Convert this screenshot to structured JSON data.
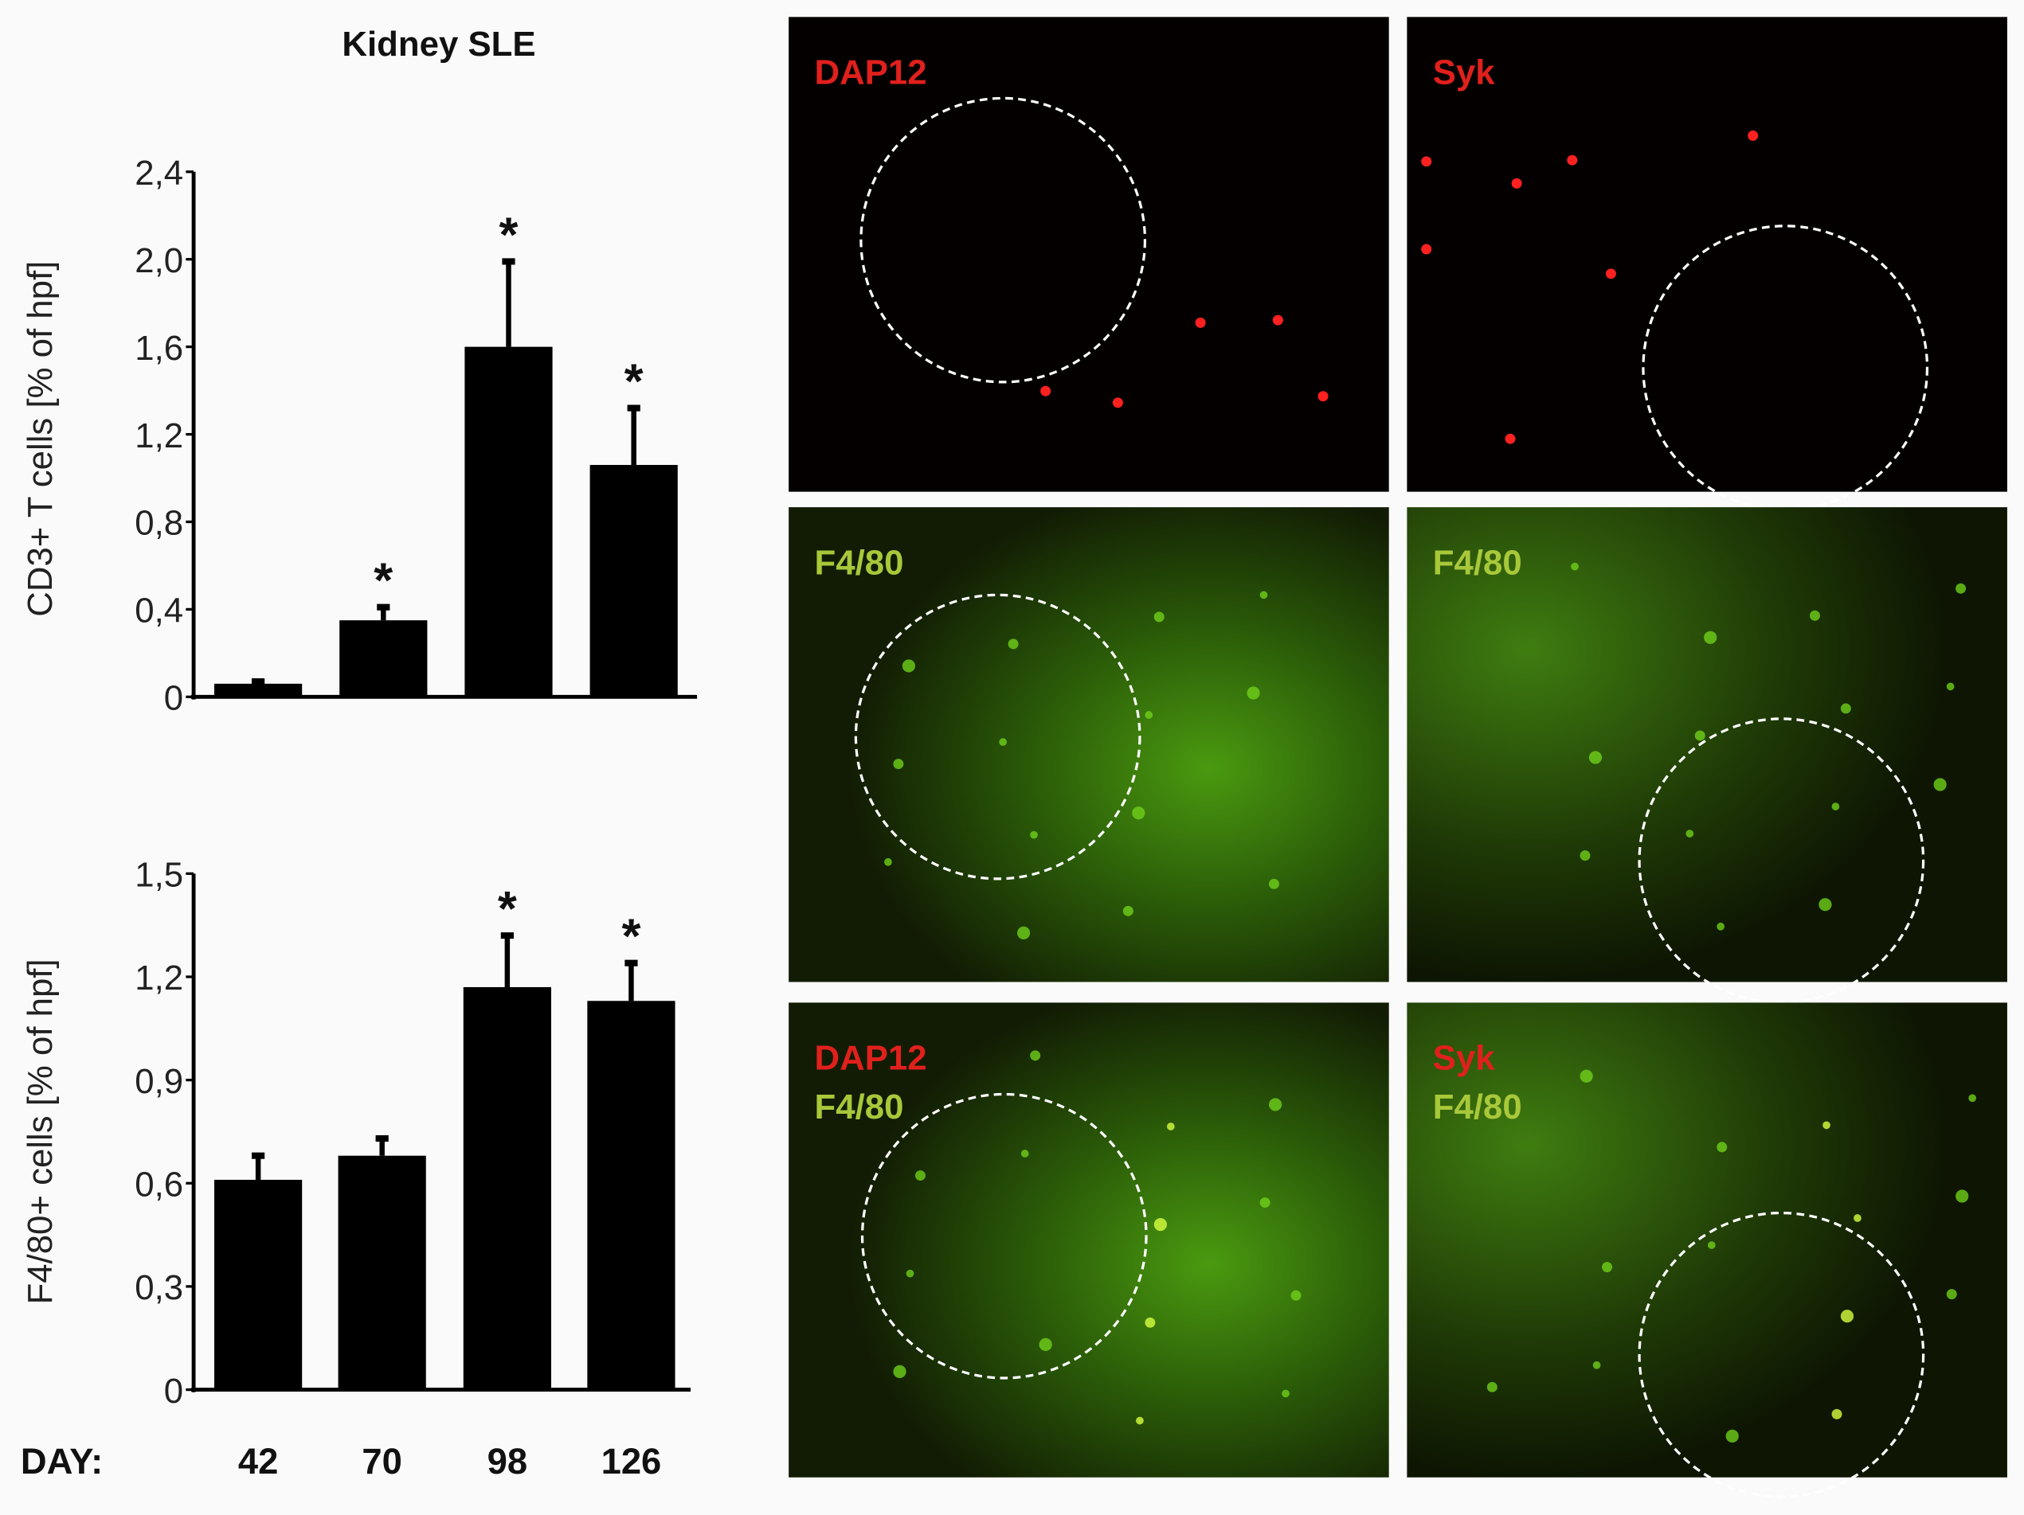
{
  "title": "Kidney SLE",
  "x_axis_label": "DAY:",
  "chart_data": [
    {
      "type": "bar",
      "title": "Kidney SLE",
      "categories": [
        "42",
        "70",
        "98",
        "126"
      ],
      "values": [
        0.06,
        0.35,
        1.6,
        1.06
      ],
      "errors": [
        0.01,
        0.06,
        0.39,
        0.26
      ],
      "significant": [
        false,
        true,
        true,
        true
      ],
      "ylabel": "CD3+ T cells [% of hpf]",
      "xlabel": "DAY:",
      "ylim": [
        0,
        2.4
      ],
      "yticks": [
        "0",
        "0,4",
        "0,8",
        "1,2",
        "1,6",
        "2,0",
        "2,4"
      ],
      "grid": false,
      "color": "#000000"
    },
    {
      "type": "bar",
      "categories": [
        "42",
        "70",
        "98",
        "126"
      ],
      "values": [
        0.61,
        0.68,
        1.17,
        1.13
      ],
      "errors": [
        0.07,
        0.05,
        0.15,
        0.11
      ],
      "significant": [
        false,
        false,
        true,
        true
      ],
      "ylabel": "F4/80+ cells [% of hpf]",
      "xlabel": "DAY:",
      "ylim": [
        0,
        1.5
      ],
      "yticks": [
        "0",
        "0,3",
        "0,6",
        "0,9",
        "1,2",
        "1,5"
      ],
      "grid": false,
      "color": "#000000"
    }
  ],
  "significance_marker": "*",
  "panels": [
    {
      "labels": [
        {
          "text": "DAP12",
          "color": "#e0201c"
        }
      ],
      "type": "red"
    },
    {
      "labels": [
        {
          "text": "Syk",
          "color": "#e0201c"
        }
      ],
      "type": "red"
    },
    {
      "labels": [
        {
          "text": "F4/80",
          "color": "#a8c83a"
        }
      ],
      "type": "green"
    },
    {
      "labels": [
        {
          "text": "F4/80",
          "color": "#a8c83a"
        }
      ],
      "type": "green"
    },
    {
      "labels": [
        {
          "text": "DAP12",
          "color": "#e0201c"
        },
        {
          "text": "F4/80",
          "color": "#a8c83a"
        }
      ],
      "type": "merge"
    },
    {
      "labels": [
        {
          "text": "Syk",
          "color": "#e0201c"
        },
        {
          "text": "F4/80",
          "color": "#a8c83a"
        }
      ],
      "type": "merge"
    }
  ]
}
